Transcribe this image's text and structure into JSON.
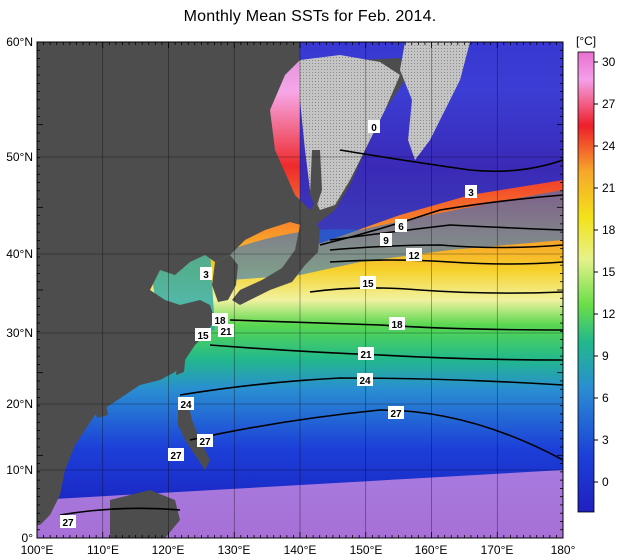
{
  "title": "Monthly Mean SSTs for Feb. 2014.",
  "colorbar": {
    "unit_label": "[°C]",
    "ticks": [
      "30",
      "27",
      "24",
      "21",
      "18",
      "15",
      "12",
      "9",
      "6",
      "3",
      "0"
    ],
    "stops": [
      "#e870d0",
      "#f5a0ea",
      "#ee1f2a",
      "#f86a26",
      "#f7a72a",
      "#f3e21a",
      "#e6f28a",
      "#6ade48",
      "#24c46a",
      "#2aa6c8",
      "#1f5ee6",
      "#1414c0",
      "#7b48c8"
    ]
  },
  "axes": {
    "lat_labels": [
      "60°N",
      "50°N",
      "40°N",
      "30°N",
      "20°N",
      "10°N",
      "0°"
    ],
    "lon_labels": [
      "100°E",
      "110°E",
      "120°E",
      "130°E",
      "140°E",
      "150°E",
      "160°E",
      "170°E",
      "180°"
    ]
  },
  "isotherm_labels": [
    "0",
    "3",
    "6",
    "9",
    "12",
    "15",
    "18",
    "21",
    "24",
    "27",
    "3",
    "18",
    "15",
    "21",
    "24",
    "27",
    "27",
    "27"
  ],
  "colors": {
    "land": "#4d4d4d",
    "sea_ice": "#c8c8c8"
  }
}
